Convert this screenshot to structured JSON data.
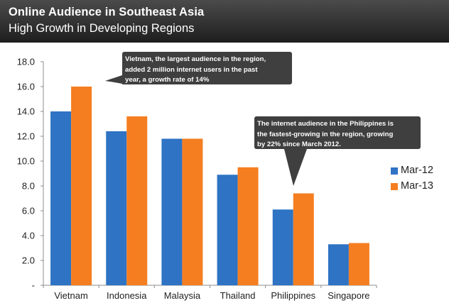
{
  "header": {
    "title": "Online Audience in Southeast Asia",
    "subtitle": "High Growth in Developing Regions"
  },
  "colors": {
    "header_bg": "#2e2e2e",
    "mar12": "#2e73c4",
    "mar13": "#f57e20",
    "callout_bg": "#3f3f3f"
  },
  "chart_data": {
    "type": "bar",
    "categories": [
      "Vietnam",
      "Indonesia",
      "Malaysia",
      "Thailand",
      "Philippines",
      "Singapore"
    ],
    "series": [
      {
        "name": "Mar-12",
        "values": [
          14.0,
          12.4,
          11.8,
          8.9,
          6.1,
          3.3
        ]
      },
      {
        "name": "Mar-13",
        "values": [
          16.0,
          13.6,
          11.8,
          9.5,
          7.4,
          3.4
        ]
      }
    ],
    "ylim": [
      0,
      18
    ],
    "yticks": [
      "-",
      "2.0",
      "4.0",
      "6.0",
      "8.0",
      "10.0",
      "12.0",
      "14.0",
      "16.0",
      "18.0"
    ],
    "legend_position": "right",
    "grid": false
  },
  "annotations": [
    {
      "lines": [
        "Vietnam, the largest audience in the region,",
        "added 2 million internet users in the past",
        "year, a growth rate of 14%"
      ]
    },
    {
      "lines": [
        "The internet audience in the Philippines  is",
        "the fastest-growing in the region, growing",
        "by 22% since March 2012."
      ]
    }
  ]
}
